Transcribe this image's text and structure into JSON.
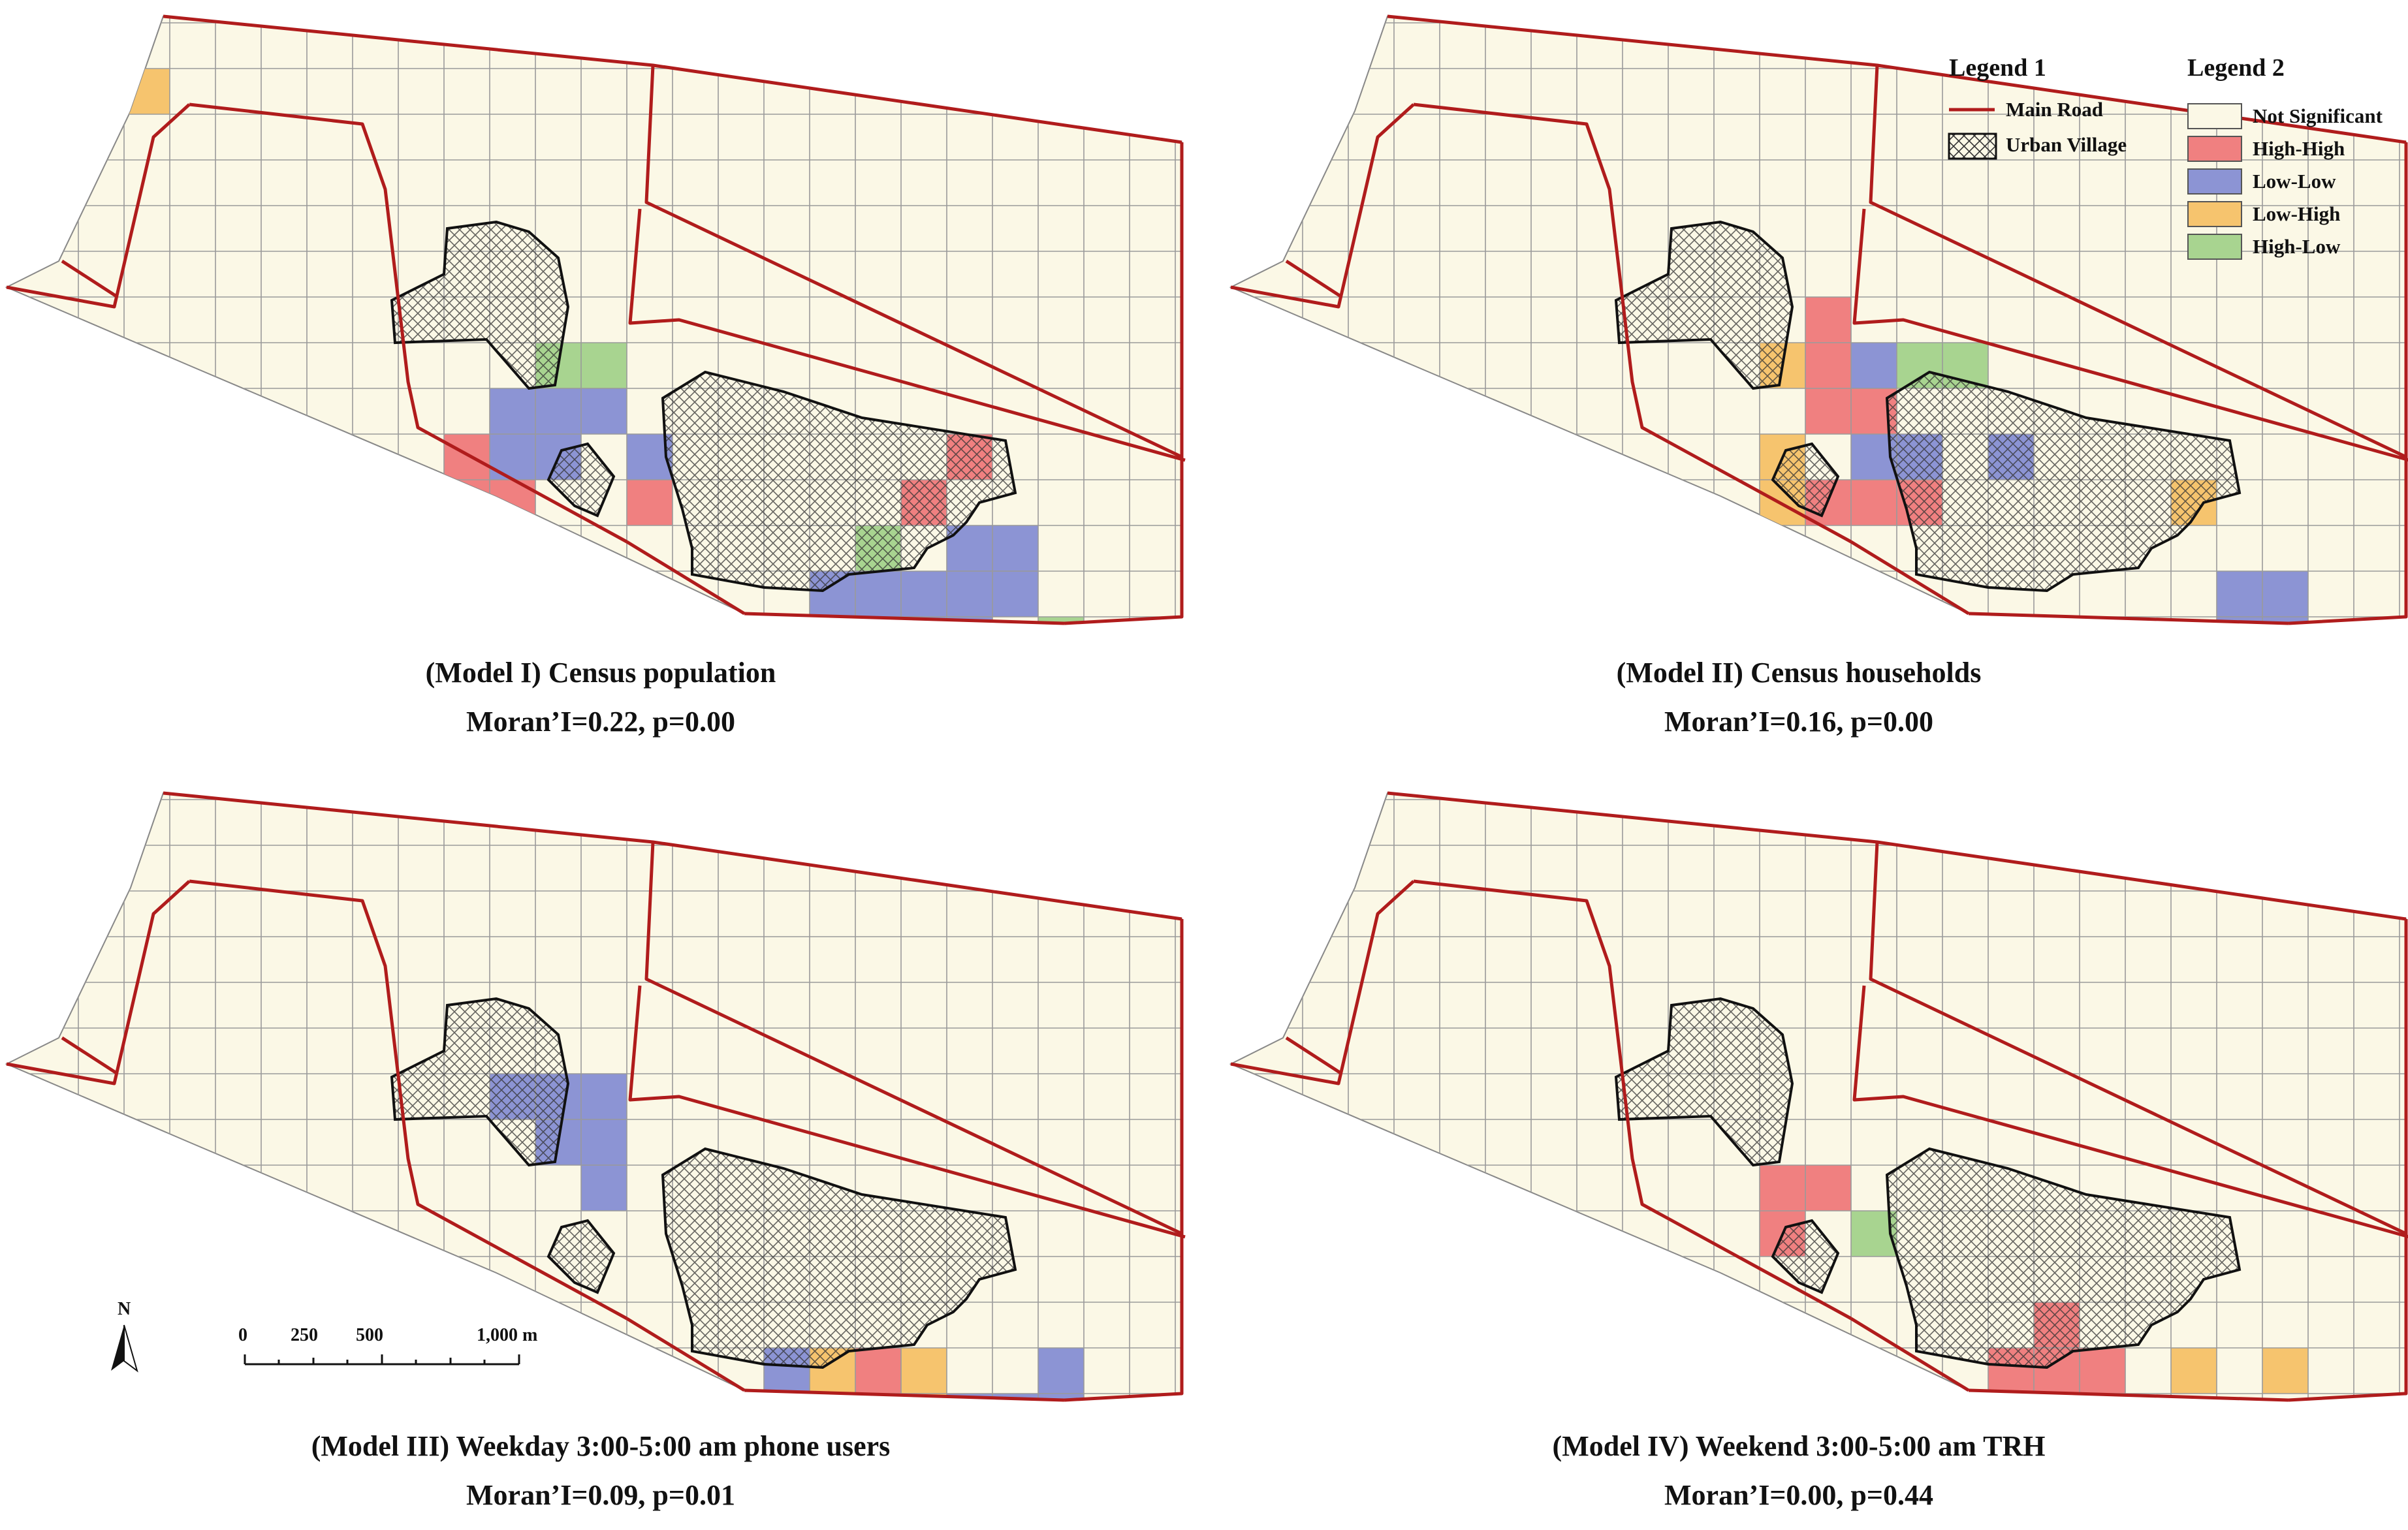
{
  "panels": [
    {
      "id": "model-1",
      "title": "(Model I) Census population",
      "stat": "Moran’I=0.22, p=0.00"
    },
    {
      "id": "model-2",
      "title": "(Model II) Census households",
      "stat": "Moran’I=0.16, p=0.00"
    },
    {
      "id": "model-3",
      "title": "(Model III)  Weekday 3:00-5:00 am phone users",
      "stat": "Moran’I=0.09, p=0.01"
    },
    {
      "id": "model-4",
      "title": "(Model IV) Weekend 3:00-5:00 am TRH",
      "stat": "Moran’I=0.00, p=0.44"
    }
  ],
  "legend1": {
    "heading": "Legend 1",
    "items": [
      {
        "label": "Main Road",
        "symbol": "line"
      },
      {
        "label": "Urban Village",
        "symbol": "hatch"
      }
    ]
  },
  "legend2": {
    "heading": "Legend 2",
    "items": [
      {
        "label": "Not Significant",
        "color": "#fbf8e6"
      },
      {
        "label": "High-High",
        "color": "#f08080"
      },
      {
        "label": "Low-Low",
        "color": "#8c94d4"
      },
      {
        "label": "Low-High",
        "color": "#f6c46e"
      },
      {
        "label": "High-Low",
        "color": "#a8d490"
      }
    ]
  },
  "colors": {
    "road": "#b01c1c",
    "grid": "#9a9a9a",
    "base": "#fbf8e6",
    "village_outline": "#111111"
  },
  "scale_bar": {
    "north_label": "N",
    "ticks": [
      "0",
      "250",
      "500",
      "1,000 m"
    ]
  }
}
